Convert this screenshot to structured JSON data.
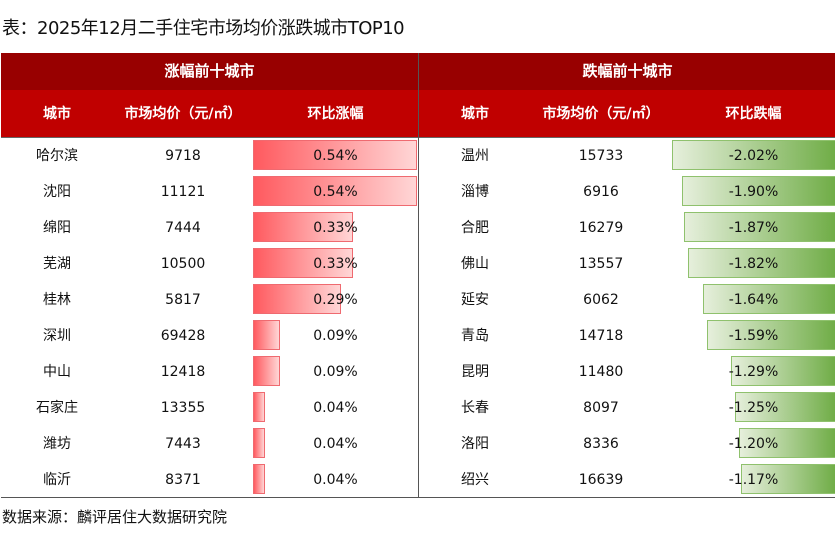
{
  "title": "表：2025年12月二手住宅市场均价涨跌城市TOP10",
  "footer": "数据来源：麟评居住大数据研究院",
  "chart_data": {
    "type": "table",
    "rise": {
      "header": "涨幅前十城市",
      "columns": [
        "城市",
        "市场均价（元/㎡）",
        "环比涨幅"
      ],
      "rows": [
        {
          "city": "哈尔滨",
          "price": "9718",
          "change": 0.54,
          "label": "0.54%"
        },
        {
          "city": "沈阳",
          "price": "11121",
          "change": 0.54,
          "label": "0.54%"
        },
        {
          "city": "绵阳",
          "price": "7444",
          "change": 0.33,
          "label": "0.33%"
        },
        {
          "city": "芜湖",
          "price": "10500",
          "change": 0.33,
          "label": "0.33%"
        },
        {
          "city": "桂林",
          "price": "5817",
          "change": 0.29,
          "label": "0.29%"
        },
        {
          "city": "深圳",
          "price": "69428",
          "change": 0.09,
          "label": "0.09%"
        },
        {
          "city": "中山",
          "price": "12418",
          "change": 0.09,
          "label": "0.09%"
        },
        {
          "city": "石家庄",
          "price": "13355",
          "change": 0.04,
          "label": "0.04%"
        },
        {
          "city": "潍坊",
          "price": "7443",
          "change": 0.04,
          "label": "0.04%"
        },
        {
          "city": "临沂",
          "price": "8371",
          "change": 0.04,
          "label": "0.04%"
        }
      ]
    },
    "fall": {
      "header": "跌幅前十城市",
      "columns": [
        "城市",
        "市场均价（元/㎡）",
        "环比跌幅"
      ],
      "rows": [
        {
          "city": "温州",
          "price": "15733",
          "change": -2.02,
          "label": "-2.02%"
        },
        {
          "city": "淄博",
          "price": "6916",
          "change": -1.9,
          "label": "-1.90%"
        },
        {
          "city": "合肥",
          "price": "16279",
          "change": -1.87,
          "label": "-1.87%"
        },
        {
          "city": "佛山",
          "price": "13557",
          "change": -1.82,
          "label": "-1.82%"
        },
        {
          "city": "延安",
          "price": "6062",
          "change": -1.64,
          "label": "-1.64%"
        },
        {
          "city": "青岛",
          "price": "14718",
          "change": -1.59,
          "label": "-1.59%"
        },
        {
          "city": "昆明",
          "price": "11480",
          "change": -1.29,
          "label": "-1.29%"
        },
        {
          "city": "长春",
          "price": "8097",
          "change": -1.25,
          "label": "-1.25%"
        },
        {
          "city": "洛阳",
          "price": "8336",
          "change": -1.2,
          "label": "-1.20%"
        },
        {
          "city": "绍兴",
          "price": "16639",
          "change": -1.17,
          "label": "-1.17%"
        }
      ]
    }
  },
  "colors": {
    "group_header": "#980000",
    "column_header": "#c00000",
    "rise_bar": "#ff5a5f",
    "fall_bar": "#70ad47"
  }
}
